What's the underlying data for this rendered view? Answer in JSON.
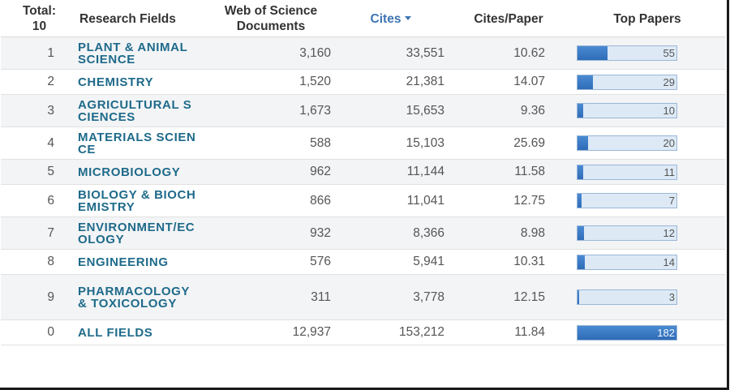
{
  "header": {
    "total_label": "Total:",
    "total_value": "10",
    "research_fields": "Research Fields",
    "wos_docs_line1": "Web of Science",
    "wos_docs_line2": "Documents",
    "cites": "Cites",
    "cites_per_paper": "Cites/Paper",
    "top_papers": "Top Papers"
  },
  "rows": [
    {
      "rank": "1",
      "field": "PLANT & ANIMAL SCIENCE",
      "docs": "3,160",
      "cites": "33,551",
      "cpp": "10.62",
      "top": "55",
      "top_value": 55
    },
    {
      "rank": "2",
      "field": "CHEMISTRY",
      "docs": "1,520",
      "cites": "21,381",
      "cpp": "14.07",
      "top": "29",
      "top_value": 29
    },
    {
      "rank": "3",
      "field": "AGRICULTURAL SCIENCES",
      "docs": "1,673",
      "cites": "15,653",
      "cpp": "9.36",
      "top": "10",
      "top_value": 10
    },
    {
      "rank": "4",
      "field": "MATERIALS SCIENCE",
      "docs": "588",
      "cites": "15,103",
      "cpp": "25.69",
      "top": "20",
      "top_value": 20
    },
    {
      "rank": "5",
      "field": "MICROBIOLOGY",
      "docs": "962",
      "cites": "11,144",
      "cpp": "11.58",
      "top": "11",
      "top_value": 11
    },
    {
      "rank": "6",
      "field": "BIOLOGY & BIOCHEMISTRY",
      "docs": "866",
      "cites": "11,041",
      "cpp": "12.75",
      "top": "7",
      "top_value": 7
    },
    {
      "rank": "7",
      "field": "ENVIRONMENT/ECOLOGY",
      "docs": "932",
      "cites": "8,366",
      "cpp": "8.98",
      "top": "12",
      "top_value": 12
    },
    {
      "rank": "8",
      "field": "ENGINEERING",
      "docs": "576",
      "cites": "5,941",
      "cpp": "10.31",
      "top": "14",
      "top_value": 14
    },
    {
      "rank": "9",
      "field": "PHARMACOLOGY & TOXICOLOGY",
      "docs": "311",
      "cites": "3,778",
      "cpp": "12.15",
      "top": "3",
      "top_value": 3
    },
    {
      "rank": "0",
      "field": "ALL FIELDS",
      "docs": "12,937",
      "cites": "153,212",
      "cpp": "11.84",
      "top": "182",
      "top_value": 182
    }
  ],
  "colors": {
    "link": "#1e6a8a",
    "sort_header": "#3f74b4",
    "bar_fill": "#3a7bc8",
    "bar_track": "#dde9f5"
  },
  "icons": {
    "sort_indicator": "caret-down-icon"
  }
}
